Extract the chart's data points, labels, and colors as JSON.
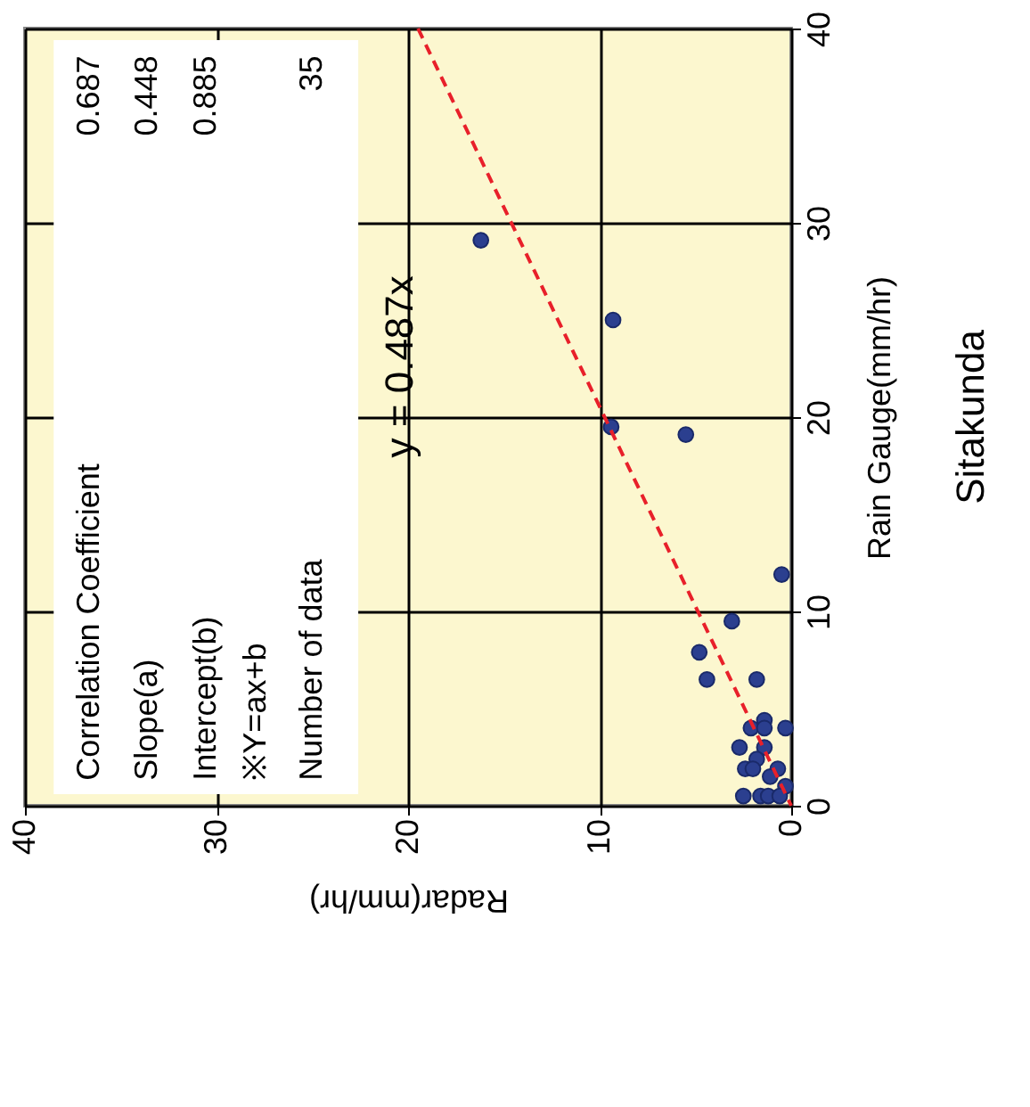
{
  "chart_data": {
    "type": "scatter",
    "title": "Sitakunda",
    "xlabel": "Radar(mm/hr)",
    "ylabel": "Rain Gauge(mm/hr)",
    "xlim": [
      40,
      0
    ],
    "xticks": [
      0,
      10,
      20,
      30,
      40
    ],
    "ylim": [
      0,
      40
    ],
    "yticks": [
      0,
      10,
      20,
      30,
      40
    ],
    "grid": true,
    "marker": "circle",
    "series": [
      {
        "color": "#2b3f8f",
        "x": [
          16.2,
          9.3,
          9.4,
          5.5,
          0.5,
          3.1,
          4.8,
          4.4,
          1.8,
          1.4,
          2.1,
          1.4,
          0.3,
          2.7,
          1.4,
          1.8,
          2.4,
          2.0,
          0.7,
          1.1,
          0.3,
          2.5,
          1.6,
          1.2,
          0.6
        ],
        "values": [
          29.1,
          25.0,
          19.5,
          19.1,
          11.9,
          9.5,
          7.9,
          6.5,
          6.5,
          4.4,
          4.0,
          4.0,
          4.0,
          3.0,
          3.0,
          2.4,
          1.9,
          1.9,
          1.9,
          1.5,
          1.0,
          0.5,
          0.5,
          0.5,
          0.5
        ]
      },
      {
        "type": "line",
        "marker": "none",
        "color": "#e8202a",
        "line_style": "dashed",
        "x": [
          0,
          19.48
        ],
        "values": [
          0,
          40
        ]
      }
    ],
    "annotations": [
      "Correlation Coefficient",
      "0.687",
      "Slope(a)",
      "0.448",
      "Intercept(b)",
      "0.885",
      "※Y=ax+b",
      "Number of data",
      "35",
      "y = 0.487x"
    ]
  }
}
